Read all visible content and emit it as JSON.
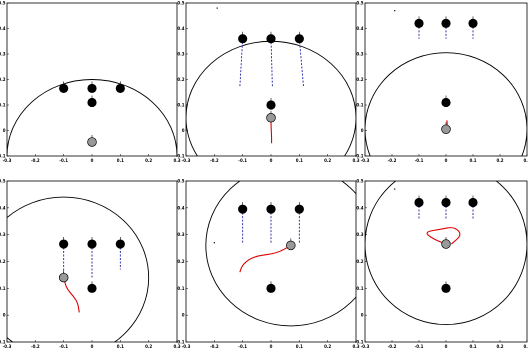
{
  "chart_data": [
    {
      "type": "scatter",
      "xlim": [
        -0.3,
        0.3
      ],
      "ylim": [
        -0.1,
        0.5
      ],
      "grid": false,
      "xticks": [
        "-0.3",
        "-0.2",
        "-0.1",
        "0",
        "0.1",
        "0.2",
        "0.3"
      ],
      "yticks": [
        "-0.1",
        "0",
        "0.1",
        "0.2",
        "0.3",
        "0.4",
        "0.5"
      ],
      "circle": {
        "cx": 0,
        "cy": -0.1,
        "r": 0.3
      },
      "black_points": [
        [
          -0.1,
          0.165
        ],
        [
          0,
          0.165
        ],
        [
          0.1,
          0.165
        ],
        [
          0,
          0.11
        ]
      ],
      "gray_point": [
        0,
        -0.045
      ],
      "dashed_lines": [],
      "trajectory": [],
      "small_marks": []
    },
    {
      "type": "scatter",
      "xlim": [
        -0.3,
        0.3
      ],
      "ylim": [
        -0.1,
        0.5
      ],
      "grid": false,
      "xticks": [
        "-0.3",
        "-0.2",
        "-0.1",
        "0",
        "0.1",
        "0.2",
        "0.3"
      ],
      "yticks": [
        "-0.1",
        "0",
        "0.1",
        "0.2",
        "0.3",
        "0.4",
        "0.5"
      ],
      "circle": {
        "cx": 0,
        "cy": 0.05,
        "r": 0.3
      },
      "black_points": [
        [
          -0.1,
          0.36
        ],
        [
          0,
          0.36
        ],
        [
          0.1,
          0.36
        ],
        [
          0,
          0.1
        ]
      ],
      "gray_point": [
        0,
        0.05
      ],
      "dashed_lines": [
        [
          [
            -0.1,
            0.36
          ],
          [
            -0.11,
            0.17
          ]
        ],
        [
          [
            0,
            0.36
          ],
          [
            0.005,
            0.17
          ]
        ],
        [
          [
            0.1,
            0.36
          ],
          [
            0.115,
            0.17
          ]
        ]
      ],
      "trajectory": [
        [
          0,
          0.05
        ],
        [
          0,
          0.02
        ],
        [
          0.002,
          -0.02
        ],
        [
          0.002,
          -0.05
        ]
      ],
      "small_marks": [
        [
          -0.19,
          0.48
        ]
      ]
    },
    {
      "type": "scatter",
      "xlim": [
        -0.3,
        0.3
      ],
      "ylim": [
        -0.1,
        0.5
      ],
      "grid": false,
      "xticks": [
        "-0.3",
        "-0.2",
        "-0.1",
        "0",
        "0.1",
        "0.2",
        "0.3"
      ],
      "yticks": [
        "-0.1",
        "0",
        "0.1",
        "0.2",
        "0.3",
        "0.4",
        "0.5"
      ],
      "circle": {
        "cx": 0,
        "cy": 0.005,
        "r": 0.3
      },
      "black_points": [
        [
          -0.1,
          0.42
        ],
        [
          0,
          0.42
        ],
        [
          0.1,
          0.42
        ],
        [
          0,
          0.11
        ]
      ],
      "gray_point": [
        0,
        0.005
      ],
      "dashed_lines": [
        [
          [
            -0.1,
            0.42
          ],
          [
            -0.1,
            0.36
          ]
        ],
        [
          [
            0,
            0.42
          ],
          [
            0,
            0.36
          ]
        ],
        [
          [
            0.1,
            0.42
          ],
          [
            0.1,
            0.36
          ]
        ]
      ],
      "trajectory": [
        [
          0,
          0.005
        ],
        [
          0.005,
          0.025
        ],
        [
          0.003,
          0.04
        ]
      ],
      "small_marks": [
        [
          -0.19,
          0.47
        ]
      ]
    },
    {
      "type": "scatter",
      "xlim": [
        -0.3,
        0.3
      ],
      "ylim": [
        -0.1,
        0.5
      ],
      "grid": false,
      "xticks": [
        "-0.3",
        "-0.2",
        "-0.1",
        "0",
        "0.1",
        "0.2",
        "0.3"
      ],
      "yticks": [
        "-0.1",
        "0",
        "0.1",
        "0.2",
        "0.3",
        "0.4",
        "0.5"
      ],
      "circle": {
        "cx": -0.1,
        "cy": 0.14,
        "r": 0.3
      },
      "black_points": [
        [
          -0.1,
          0.265
        ],
        [
          0,
          0.265
        ],
        [
          0.1,
          0.265
        ],
        [
          0,
          0.1
        ]
      ],
      "gray_point": [
        -0.1,
        0.14
      ],
      "dashed_lines": [
        [
          [
            -0.1,
            0.265
          ],
          [
            -0.1,
            0.15
          ]
        ],
        [
          [
            0,
            0.265
          ],
          [
            0,
            0.135
          ]
        ],
        [
          [
            0.1,
            0.265
          ],
          [
            0.1,
            0.17
          ]
        ]
      ],
      "trajectory": [
        [
          -0.1,
          0.14
        ],
        [
          -0.09,
          0.1
        ],
        [
          -0.065,
          0.07
        ],
        [
          -0.05,
          0.045
        ],
        [
          -0.045,
          0.01
        ]
      ],
      "small_marks": []
    },
    {
      "type": "scatter",
      "xlim": [
        -0.3,
        0.3
      ],
      "ylim": [
        -0.1,
        0.5
      ],
      "grid": false,
      "xticks": [
        "-0.3",
        "-0.2",
        "-0.1",
        "0",
        "0.1",
        "0.2",
        "0.3"
      ],
      "yticks": [
        "-0.1",
        "0",
        "0.1",
        "0.2",
        "0.3",
        "0.4",
        "0.5"
      ],
      "circle": {
        "cx": 0.07,
        "cy": 0.26,
        "r": 0.3
      },
      "black_points": [
        [
          -0.1,
          0.395
        ],
        [
          0,
          0.395
        ],
        [
          0.1,
          0.395
        ],
        [
          0,
          0.1
        ]
      ],
      "gray_point": [
        0.07,
        0.26
      ],
      "dashed_lines": [
        [
          [
            -0.1,
            0.395
          ],
          [
            -0.1,
            0.27
          ]
        ],
        [
          [
            0,
            0.395
          ],
          [
            0,
            0.27
          ]
        ],
        [
          [
            0.1,
            0.395
          ],
          [
            0.1,
            0.27
          ]
        ]
      ],
      "trajectory": [
        [
          0.07,
          0.26
        ],
        [
          0.02,
          0.23
        ],
        [
          -0.06,
          0.22
        ],
        [
          -0.1,
          0.19
        ],
        [
          -0.11,
          0.16
        ]
      ],
      "small_marks": [
        [
          -0.2,
          0.27
        ]
      ]
    },
    {
      "type": "scatter",
      "xlim": [
        -0.3,
        0.3
      ],
      "ylim": [
        -0.1,
        0.5
      ],
      "grid": false,
      "xticks": [
        "-0.3",
        "-0.2",
        "-0.1",
        "0",
        "0.1",
        "0.2",
        "0.3"
      ],
      "yticks": [
        "-0.1",
        "0",
        "0.1",
        "0.2",
        "0.3",
        "0.4",
        "0.5"
      ],
      "circle": {
        "cx": 0,
        "cy": 0.265,
        "r": 0.3
      },
      "black_points": [
        [
          -0.1,
          0.42
        ],
        [
          0,
          0.42
        ],
        [
          0.1,
          0.42
        ],
        [
          0,
          0.1
        ]
      ],
      "gray_point": [
        0,
        0.265
      ],
      "dashed_lines": [
        [
          [
            -0.1,
            0.42
          ],
          [
            -0.1,
            0.36
          ]
        ],
        [
          [
            0,
            0.42
          ],
          [
            0,
            0.36
          ]
        ],
        [
          [
            0.1,
            0.42
          ],
          [
            0.1,
            0.36
          ]
        ]
      ],
      "trajectory": [
        [
          0,
          0.265
        ],
        [
          -0.05,
          0.285
        ],
        [
          -0.08,
          0.31
        ],
        [
          -0.02,
          0.32
        ],
        [
          0.03,
          0.33
        ],
        [
          0.06,
          0.3
        ],
        [
          0.02,
          0.265
        ]
      ],
      "small_marks": [
        [
          -0.19,
          0.47
        ]
      ]
    }
  ]
}
